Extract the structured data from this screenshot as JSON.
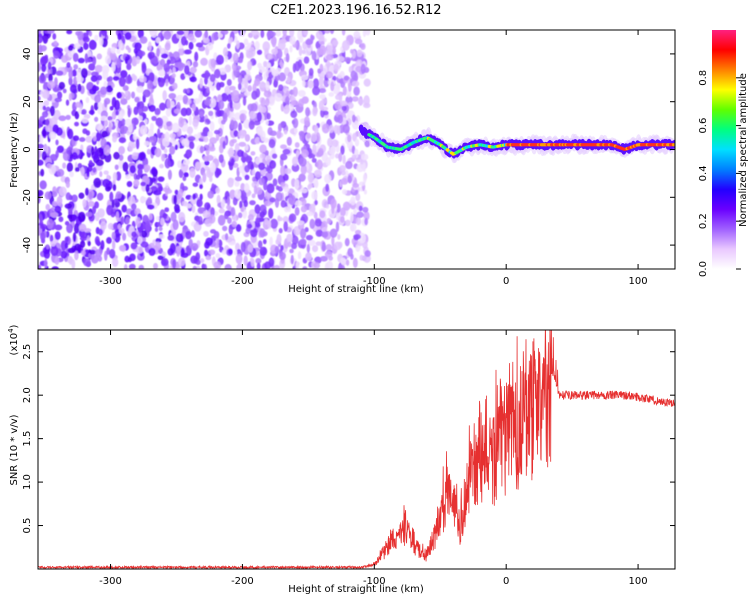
{
  "title": "C2E1.2023.196.16.52.R12",
  "chart_data": [
    {
      "type": "heatmap",
      "name": "spectrogram",
      "xlabel": "Height of straight line (km)",
      "ylabel": "Frequency (Hz)",
      "xlim": [
        -355,
        128
      ],
      "ylim": [
        -50,
        50
      ],
      "x_ticks": [
        -300,
        -200,
        -100,
        0,
        100
      ],
      "y_ticks": [
        -40,
        -20,
        0,
        20,
        40
      ],
      "colorbar": {
        "label": "Normalized spectral amplitude",
        "range": [
          0,
          1
        ],
        "ticks": [
          "0.0",
          "0.2",
          "0.4",
          "0.6",
          "0.8"
        ],
        "ticks_values": [
          0.0,
          0.2,
          0.4,
          0.6,
          0.8
        ],
        "colors": [
          "#ffffff",
          "#e9c8ff",
          "#a060ff",
          "#6a00ff",
          "#2200ff",
          "#0080ff",
          "#00e0ff",
          "#00ff80",
          "#60ff00",
          "#ffff00",
          "#ff8000",
          "#ff0000",
          "#ff2080"
        ]
      },
      "features": {
        "noise_region_x": [
          -355,
          -105
        ],
        "tone_x_start": -105,
        "tone_path": [
          [
            -110,
            8
          ],
          [
            -100,
            5
          ],
          [
            -90,
            1
          ],
          [
            -80,
            0
          ],
          [
            -70,
            3
          ],
          [
            -60,
            5
          ],
          [
            -50,
            2
          ],
          [
            -40,
            -2
          ],
          [
            -30,
            1
          ],
          [
            -20,
            2
          ],
          [
            -10,
            1
          ],
          [
            0,
            2
          ],
          [
            20,
            2
          ],
          [
            40,
            2
          ],
          [
            60,
            2
          ],
          [
            80,
            2
          ],
          [
            90,
            0
          ],
          [
            100,
            2
          ],
          [
            128,
            2
          ]
        ]
      }
    },
    {
      "type": "line",
      "name": "snr",
      "xlabel": "Height of straight line (km)",
      "ylabel": "SNR (10 * v/v)",
      "y_multiplier": "(x10",
      "y_multiplier_exp": "4",
      "y_multiplier_close": ")",
      "xlim": [
        -355,
        128
      ],
      "ylim": [
        0,
        2.75
      ],
      "x_ticks": [
        -300,
        -200,
        -100,
        0,
        100
      ],
      "y_ticks": [
        "0.5",
        "1.0",
        "1.5",
        "2.0",
        "2.5"
      ],
      "y_tick_values": [
        0.5,
        1.0,
        1.5,
        2.0,
        2.5
      ],
      "color": "#e63030",
      "series": [
        {
          "x": [
            -355,
            -300,
            -250,
            -200,
            -150,
            -110,
            -100,
            -95,
            -90,
            -85,
            -80,
            -75,
            -70,
            -65,
            -60,
            -55,
            -50,
            -45,
            -40,
            -35,
            -30,
            -25,
            -20,
            -15,
            -10,
            -5,
            0,
            5,
            10,
            15,
            20,
            25,
            30,
            35,
            40,
            45,
            50,
            60,
            70,
            80,
            90,
            100,
            110,
            120,
            128
          ],
          "values": [
            0.02,
            0.02,
            0.02,
            0.02,
            0.02,
            0.02,
            0.05,
            0.15,
            0.25,
            0.35,
            0.4,
            0.5,
            0.3,
            0.2,
            0.15,
            0.35,
            0.55,
            0.9,
            0.7,
            0.5,
            0.9,
            1.1,
            1.3,
            1.4,
            1.2,
            1.6,
            1.5,
            1.5,
            1.7,
            1.75,
            1.85,
            1.9,
            2.0,
            2.3,
            2.0,
            2.0,
            2.0,
            2.0,
            2.0,
            2.0,
            2.0,
            1.98,
            1.95,
            1.92,
            1.9
          ]
        }
      ]
    }
  ]
}
